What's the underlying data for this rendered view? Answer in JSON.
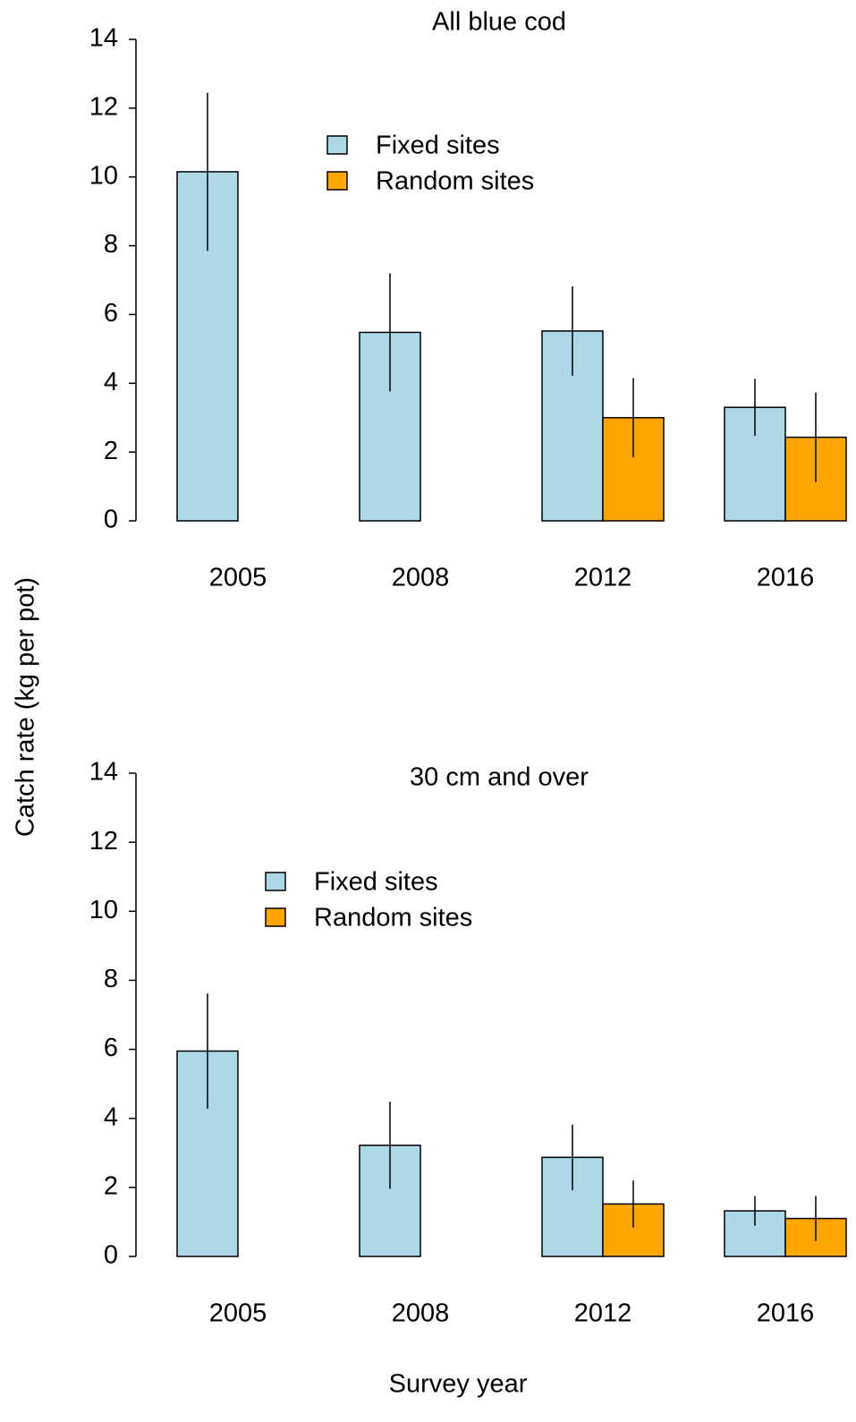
{
  "ylabel": "Catch rate (kg per pot)",
  "xlabel": "Survey year",
  "chart_data": [
    {
      "type": "bar",
      "title": "All blue cod",
      "categories": [
        "2005",
        "2008",
        "2012",
        "2016"
      ],
      "series": [
        {
          "name": "Fixed sites",
          "color": "#add8e6",
          "values": [
            10.15,
            5.48,
            5.52,
            3.3
          ],
          "errors": [
            2.3,
            1.72,
            1.3,
            0.83
          ]
        },
        {
          "name": "Random sites",
          "color": "#ffa500",
          "values": [
            null,
            null,
            3.0,
            2.43
          ],
          "errors": [
            null,
            null,
            1.15,
            1.3
          ]
        }
      ],
      "ylim": [
        0,
        14
      ],
      "yticks": [
        0,
        2,
        4,
        6,
        8,
        10,
        12,
        14
      ]
    },
    {
      "type": "bar",
      "title": "30 cm and over",
      "categories": [
        "2005",
        "2008",
        "2012",
        "2016"
      ],
      "series": [
        {
          "name": "Fixed sites",
          "color": "#add8e6",
          "values": [
            5.95,
            3.22,
            2.87,
            1.32
          ],
          "errors": [
            1.67,
            1.26,
            0.95,
            0.43
          ]
        },
        {
          "name": "Random sites",
          "color": "#ffa500",
          "values": [
            null,
            null,
            1.52,
            1.1
          ],
          "errors": [
            null,
            null,
            0.68,
            0.65
          ]
        }
      ],
      "ylim": [
        0,
        14
      ],
      "yticks": [
        0,
        2,
        4,
        6,
        8,
        10,
        12,
        14
      ]
    }
  ]
}
